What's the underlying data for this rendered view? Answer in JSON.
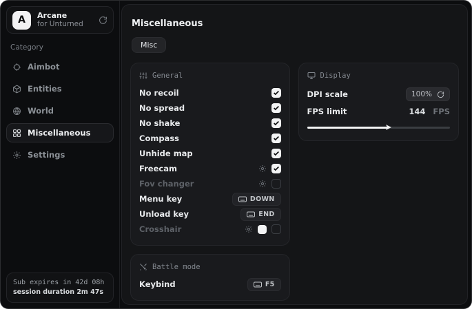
{
  "sidebar": {
    "header": {
      "avatar_letter": "A",
      "title": "Arcane",
      "subtitle": "for Unturned"
    },
    "category_label": "Category",
    "items": [
      {
        "label": "Aimbot",
        "icon": "crosshair-icon",
        "active": false
      },
      {
        "label": "Entities",
        "icon": "entities-icon",
        "active": false
      },
      {
        "label": "World",
        "icon": "globe-icon",
        "active": false
      },
      {
        "label": "Miscellaneous",
        "icon": "grid-icon",
        "active": true
      },
      {
        "label": "Settings",
        "icon": "gear-icon",
        "active": false
      }
    ],
    "footer": {
      "line1": "Sub expires in 42d 08h",
      "line2": "session duration 2m 47s"
    }
  },
  "main": {
    "title": "Miscellaneous",
    "tab": "Misc",
    "general": {
      "title": "General",
      "rows": [
        {
          "label": "No recoil",
          "type": "checkbox",
          "checked": true,
          "disabled": false
        },
        {
          "label": "No spread",
          "type": "checkbox",
          "checked": true,
          "disabled": false
        },
        {
          "label": "No shake",
          "type": "checkbox",
          "checked": true,
          "disabled": false
        },
        {
          "label": "Compass",
          "type": "checkbox",
          "checked": true,
          "disabled": false
        },
        {
          "label": "Unhide map",
          "type": "checkbox",
          "checked": true,
          "disabled": false
        },
        {
          "label": "Freecam",
          "type": "gear-checkbox",
          "checked": true,
          "disabled": false
        },
        {
          "label": "Fov changer",
          "type": "gear-checkbox",
          "checked": false,
          "disabled": true
        },
        {
          "label": "Menu key",
          "type": "keybind",
          "value": "DOWN"
        },
        {
          "label": "Unload key",
          "type": "keybind",
          "value": "END"
        },
        {
          "label": "Crosshair",
          "type": "gear-color-checkbox",
          "checked": false,
          "disabled": true,
          "color": "#f2f3f4"
        }
      ]
    },
    "battle": {
      "title": "Battle mode",
      "rows": [
        {
          "label": "Keybind",
          "type": "keybind",
          "value": "F5"
        }
      ]
    },
    "display": {
      "title": "Display",
      "dpi": {
        "label": "DPI scale",
        "value": "100%"
      },
      "fps": {
        "label": "FPS limit",
        "value": "144",
        "unit": "FPS",
        "percent": 57
      }
    }
  },
  "colors": {
    "accent": "#f2f3f4",
    "panel": "#191a1d",
    "background": "#0c0d0f",
    "text": "#e8eaec",
    "muted": "#83888f"
  }
}
